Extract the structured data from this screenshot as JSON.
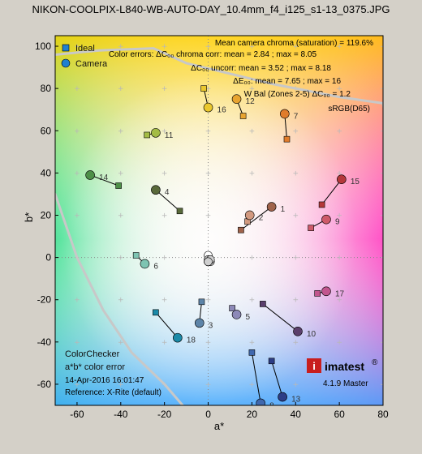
{
  "title": "NIKON-COOLPIX-L840-WB-AUTO-DAY_10.4mm_f4_i125_s1-13_0375.JPG",
  "chart_data": {
    "type": "scatter",
    "xlabel": "a*",
    "ylabel": "b*",
    "xlim": [
      -70,
      80
    ],
    "ylim": [
      -70,
      105
    ],
    "xticks": [
      -60,
      -40,
      -20,
      0,
      20,
      40,
      60,
      80
    ],
    "yticks": [
      -60,
      -40,
      -20,
      0,
      20,
      40,
      60,
      80,
      100
    ],
    "grid": true,
    "legend": {
      "position": "top-left",
      "entries": [
        {
          "name": "Ideal",
          "marker": "square"
        },
        {
          "name": "Camera",
          "marker": "circle"
        }
      ]
    },
    "patches": [
      {
        "id": "1",
        "ideal": [
          15,
          13
        ],
        "camera": [
          29,
          24
        ],
        "color": "#a0624a"
      },
      {
        "id": "2",
        "ideal": [
          18,
          17
        ],
        "camera": [
          19,
          20
        ],
        "color": "#d2997f"
      },
      {
        "id": "3",
        "ideal": [
          -3,
          -21
        ],
        "camera": [
          -4,
          -31
        ],
        "color": "#5d84a8"
      },
      {
        "id": "4",
        "ideal": [
          -13,
          22
        ],
        "camera": [
          -24,
          32
        ],
        "color": "#596a3a"
      },
      {
        "id": "5",
        "ideal": [
          11,
          -24
        ],
        "camera": [
          13,
          -27
        ],
        "color": "#8d89b8"
      },
      {
        "id": "6",
        "ideal": [
          -33,
          1
        ],
        "camera": [
          -29,
          -3
        ],
        "color": "#7ec4b2"
      },
      {
        "id": "7",
        "ideal": [
          36,
          56
        ],
        "camera": [
          35,
          68
        ],
        "color": "#e07c2c"
      },
      {
        "id": "8",
        "ideal": [
          20,
          -45
        ],
        "camera": [
          24,
          -69
        ],
        "color": "#4068ae"
      },
      {
        "id": "9",
        "ideal": [
          47,
          14
        ],
        "camera": [
          54,
          18
        ],
        "color": "#ce5a6a"
      },
      {
        "id": "10",
        "ideal": [
          25,
          -22
        ],
        "camera": [
          41,
          -35
        ],
        "color": "#5b3f6c"
      },
      {
        "id": "11",
        "ideal": [
          -28,
          58
        ],
        "camera": [
          -24,
          59
        ],
        "color": "#a4bc44"
      },
      {
        "id": "12",
        "ideal": [
          16,
          67
        ],
        "camera": [
          13,
          75
        ],
        "color": "#e8a430"
      },
      {
        "id": "13",
        "ideal": [
          29,
          -49
        ],
        "camera": [
          34,
          -66
        ],
        "color": "#2c3d86"
      },
      {
        "id": "14",
        "ideal": [
          -41,
          34
        ],
        "camera": [
          -54,
          39
        ],
        "color": "#4d8f48"
      },
      {
        "id": "15",
        "ideal": [
          52,
          25
        ],
        "camera": [
          61,
          37
        ],
        "color": "#b4383a"
      },
      {
        "id": "16",
        "ideal": [
          -2,
          80
        ],
        "camera": [
          0,
          71
        ],
        "color": "#ebc82e"
      },
      {
        "id": "17",
        "ideal": [
          50,
          -17
        ],
        "camera": [
          54,
          -16
        ],
        "color": "#c2568e"
      },
      {
        "id": "18",
        "ideal": [
          -24,
          -26
        ],
        "camera": [
          -14,
          -38
        ],
        "color": "#1b8aa8"
      }
    ],
    "neutrals": [
      {
        "ideal": [
          0,
          0
        ],
        "camera": [
          0,
          1
        ]
      },
      {
        "ideal": [
          0,
          0
        ],
        "camera": [
          0,
          -1
        ]
      },
      {
        "ideal": [
          0,
          0
        ],
        "camera": [
          1,
          -2
        ]
      },
      {
        "ideal": [
          0,
          0
        ],
        "camera": [
          0,
          -2
        ]
      },
      {
        "ideal": [
          0,
          0
        ],
        "camera": [
          1,
          -1
        ]
      },
      {
        "ideal": [
          0,
          0
        ],
        "camera": [
          0,
          -2
        ]
      }
    ],
    "srgb_label": "sRGB(D65)"
  },
  "annotations": {
    "line1": "Mean camera chroma (saturation) = 119.6%",
    "line2": "Color errors:  ΔC₀₀ chroma corr: mean = 2.84 ; max = 8.05",
    "line3": "ΔC₀₀ uncorr: mean = 3.52 ; max = 8.18",
    "line4": "ΔE₀₀: mean = 7.65 ; max = 16",
    "line5": "W Bal (Zones 2-5)  ΔC₀₀ = 1.2"
  },
  "info": {
    "line1": "ColorChecker",
    "line2": "a*b* color error",
    "line3": "14-Apr-2016 16:01:47",
    "line4": "Reference: X-Rite (default)"
  },
  "logo": {
    "name": "imatest",
    "registered": "®",
    "version": "4.1.9 Master"
  }
}
